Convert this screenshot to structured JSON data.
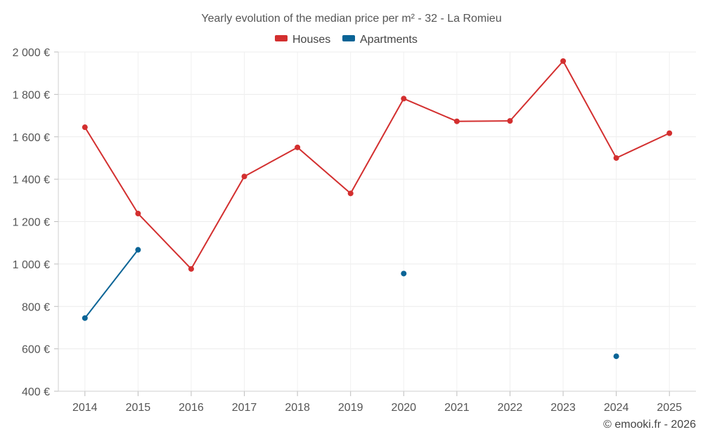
{
  "chart_data": {
    "type": "line",
    "title": "Yearly evolution of the median price per m² - 32 - La Romieu",
    "categories": [
      "2014",
      "2015",
      "2016",
      "2017",
      "2018",
      "2019",
      "2020",
      "2021",
      "2022",
      "2023",
      "2024",
      "2025"
    ],
    "yticks": [
      "400 €",
      "600 €",
      "800 €",
      "1 000 €",
      "1 200 €",
      "1 400 €",
      "1 600 €",
      "1 800 €",
      "2 000 €"
    ],
    "ylim": [
      400,
      2000
    ],
    "grid": true,
    "legend_position": "top-center",
    "series": [
      {
        "name": "Houses",
        "color": "#d32f2f",
        "values": [
          1645,
          1238,
          977,
          1413,
          1550,
          1333,
          1780,
          1673,
          1675,
          1957,
          1500,
          1617
        ]
      },
      {
        "name": "Apartments",
        "color": "#0a6496",
        "values": [
          745,
          1067,
          null,
          null,
          null,
          null,
          955,
          null,
          null,
          null,
          565,
          null
        ]
      }
    ]
  },
  "credit": "© emooki.fr - 2026"
}
